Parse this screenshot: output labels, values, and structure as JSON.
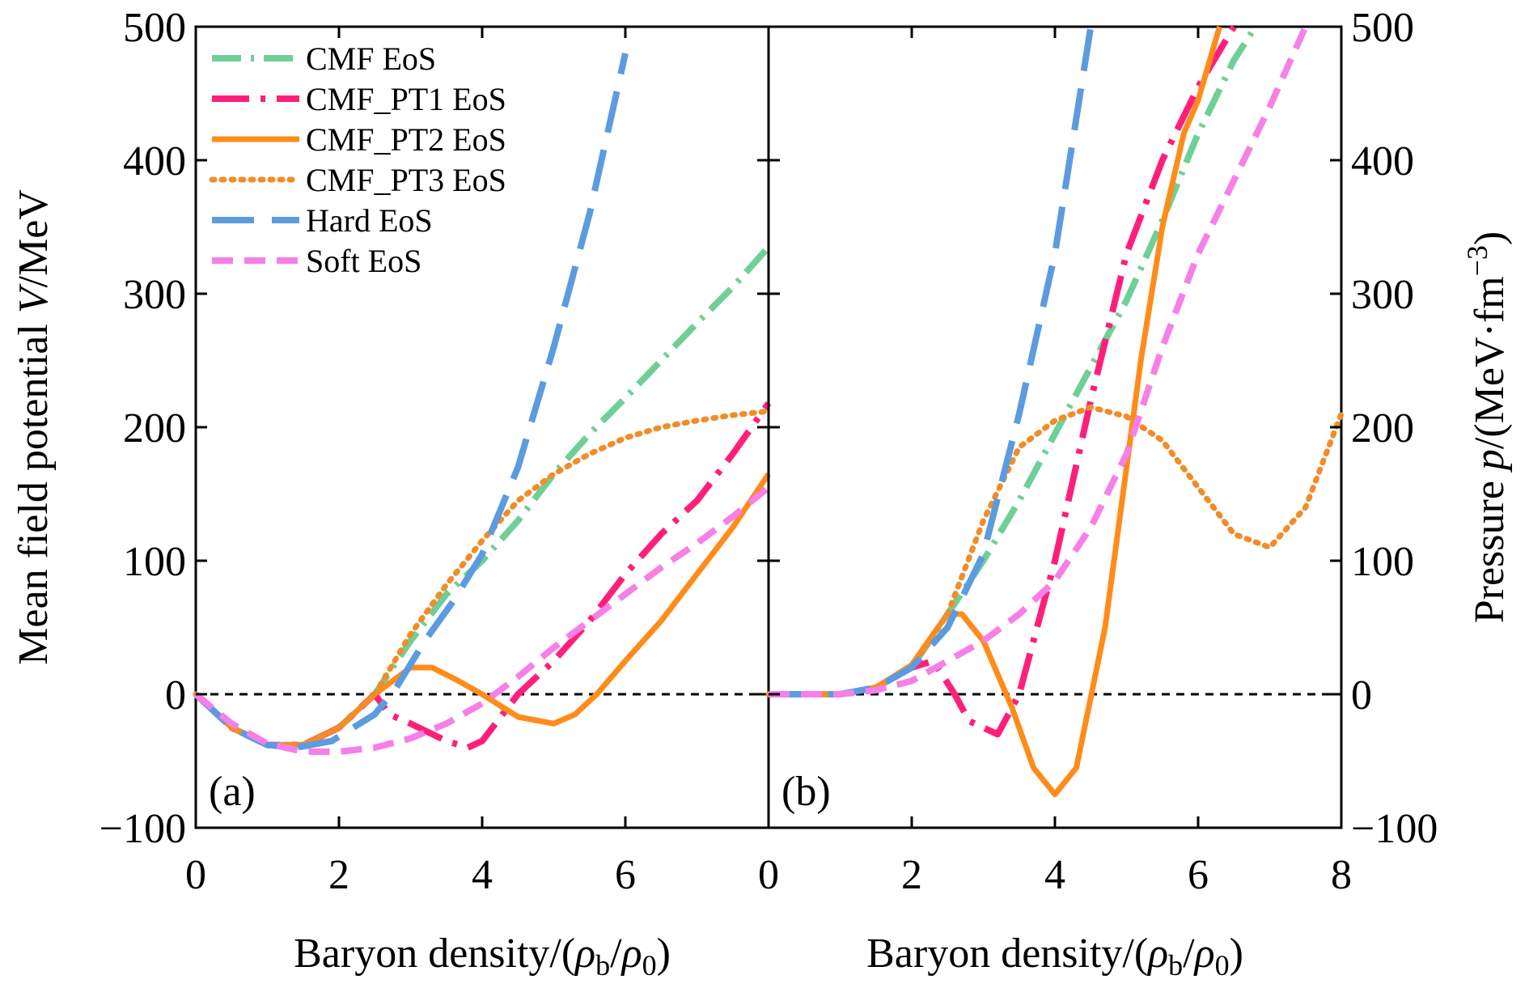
{
  "chart_data": [
    {
      "panel": "(a)",
      "type": "line",
      "xlabel_text": "Baryon density/(",
      "xlabel_rho_b": "ρ",
      "xlabel_sub_b": "b",
      "xlabel_slash": "/",
      "xlabel_rho_0": "ρ",
      "xlabel_sub_0": "0",
      "xlabel_close": ")",
      "ylabel_text": "Mean field potential ",
      "ylabel_italic": "V",
      "ylabel_unit": "/MeV",
      "xlim": [
        0,
        8
      ],
      "ylim": [
        -100,
        500
      ],
      "x_ticks": [
        "0",
        "2",
        "4",
        "6"
      ],
      "y_ticks": [
        "−100",
        "0",
        "100",
        "200",
        "300",
        "400",
        "500"
      ],
      "x_tick_values": [
        0,
        2,
        4,
        6
      ],
      "y_tick_values": [
        -100,
        0,
        100,
        200,
        300,
        400,
        500
      ],
      "series": [
        {
          "name": "CMF EoS",
          "color": "#6fcf97",
          "dash": "dashdot",
          "points": [
            [
              0,
              0
            ],
            [
              0.5,
              -25
            ],
            [
              1,
              -38
            ],
            [
              1.5,
              -38
            ],
            [
              2,
              -25
            ],
            [
              2.5,
              0
            ],
            [
              3,
              40
            ],
            [
              3.5,
              75
            ],
            [
              4,
              100
            ],
            [
              4.5,
              130
            ],
            [
              5,
              165
            ],
            [
              5.5,
              195
            ],
            [
              6,
              222
            ],
            [
              6.5,
              250
            ],
            [
              7,
              278
            ],
            [
              7.5,
              305
            ],
            [
              8,
              335
            ]
          ]
        },
        {
          "name": "CMF_PT1 EoS",
          "color": "#ff1f7a",
          "dash": "longdashdot",
          "points": [
            [
              0,
              0
            ],
            [
              0.5,
              -25
            ],
            [
              1,
              -38
            ],
            [
              1.5,
              -38
            ],
            [
              2,
              -25
            ],
            [
              2.5,
              0
            ],
            [
              2.7,
              -15
            ],
            [
              3,
              -22
            ],
            [
              3.5,
              -35
            ],
            [
              3.8,
              -40
            ],
            [
              4,
              -35
            ],
            [
              4.5,
              0
            ],
            [
              5,
              25
            ],
            [
              5.5,
              55
            ],
            [
              6,
              90
            ],
            [
              6.5,
              120
            ],
            [
              7,
              145
            ],
            [
              7.5,
              180
            ],
            [
              8,
              218
            ]
          ]
        },
        {
          "name": "CMF_PT2 EoS",
          "color": "#ff8c1a",
          "dash": "solid",
          "points": [
            [
              0,
              0
            ],
            [
              0.5,
              -25
            ],
            [
              1,
              -38
            ],
            [
              1.5,
              -38
            ],
            [
              2,
              -25
            ],
            [
              2.5,
              0
            ],
            [
              3,
              20
            ],
            [
              3.3,
              20
            ],
            [
              3.6,
              12
            ],
            [
              4,
              0
            ],
            [
              4.5,
              -17
            ],
            [
              5,
              -22
            ],
            [
              5.3,
              -15
            ],
            [
              5.6,
              0
            ],
            [
              6,
              25
            ],
            [
              6.5,
              55
            ],
            [
              7,
              90
            ],
            [
              7.5,
              125
            ],
            [
              8,
              165
            ]
          ]
        },
        {
          "name": "CMF_PT3 EoS",
          "color": "#f28c28",
          "dash": "dotted",
          "points": [
            [
              0,
              0
            ],
            [
              0.5,
              -25
            ],
            [
              1,
              -38
            ],
            [
              1.5,
              -38
            ],
            [
              2,
              -25
            ],
            [
              2.5,
              0
            ],
            [
              3,
              45
            ],
            [
              3.5,
              82
            ],
            [
              4,
              115
            ],
            [
              4.5,
              145
            ],
            [
              5,
              165
            ],
            [
              5.5,
              180
            ],
            [
              6,
              192
            ],
            [
              6.5,
              200
            ],
            [
              7,
              205
            ],
            [
              7.5,
              209
            ],
            [
              8,
              212
            ]
          ]
        },
        {
          "name": "Hard EoS",
          "color": "#5b9be0",
          "dash": "longdash",
          "points": [
            [
              0,
              0
            ],
            [
              0.5,
              -25
            ],
            [
              1,
              -38
            ],
            [
              1.4,
              -40
            ],
            [
              1.9,
              -35
            ],
            [
              2.5,
              -15
            ],
            [
              2.8,
              5
            ],
            [
              3.2,
              40
            ],
            [
              3.6,
              70
            ],
            [
              4,
              105
            ],
            [
              4.5,
              170
            ],
            [
              5,
              260
            ],
            [
              5.5,
              360
            ],
            [
              6,
              480
            ]
          ]
        },
        {
          "name": "Soft EoS",
          "color": "#f77fe8",
          "dash": "dashed",
          "points": [
            [
              0,
              0
            ],
            [
              0.5,
              -22
            ],
            [
              1,
              -37
            ],
            [
              1.5,
              -43
            ],
            [
              2,
              -43
            ],
            [
              2.5,
              -40
            ],
            [
              3,
              -33
            ],
            [
              3.5,
              -22
            ],
            [
              4,
              -7
            ],
            [
              4.5,
              13
            ],
            [
              5,
              35
            ],
            [
              5.5,
              55
            ],
            [
              6,
              75
            ],
            [
              6.5,
              95
            ],
            [
              7,
              113
            ],
            [
              7.5,
              133
            ],
            [
              8,
              155
            ]
          ]
        }
      ]
    },
    {
      "panel": "(b)",
      "type": "line",
      "xlabel_text": "Baryon density/(",
      "xlabel_rho_b": "ρ",
      "xlabel_sub_b": "b",
      "xlabel_slash": "/",
      "xlabel_rho_0": "ρ",
      "xlabel_sub_0": "0",
      "xlabel_close": ")",
      "ylabel_text": "Pressure ",
      "ylabel_italic": "p",
      "ylabel_unit": "/(MeV·fm",
      "ylabel_sup": "−3",
      "ylabel_close": ")",
      "xlim": [
        0,
        8
      ],
      "ylim": [
        -100,
        500
      ],
      "x_ticks": [
        "0",
        "2",
        "4",
        "6",
        "8"
      ],
      "y_ticks": [
        "−100",
        "0",
        "100",
        "200",
        "300",
        "400",
        "500"
      ],
      "x_tick_values": [
        0,
        2,
        4,
        6,
        8
      ],
      "y_tick_values": [
        -100,
        0,
        100,
        200,
        300,
        400,
        500
      ],
      "series": [
        {
          "name": "CMF EoS",
          "color": "#6fcf97",
          "dash": "dashdot",
          "points": [
            [
              0,
              0
            ],
            [
              1,
              0
            ],
            [
              1.5,
              5
            ],
            [
              2,
              20
            ],
            [
              2.5,
              60
            ],
            [
              3,
              100
            ],
            [
              3.5,
              145
            ],
            [
              4,
              195
            ],
            [
              4.5,
              245
            ],
            [
              5,
              295
            ],
            [
              5.5,
              355
            ],
            [
              6,
              420
            ],
            [
              6.5,
              475
            ],
            [
              6.8,
              500
            ]
          ]
        },
        {
          "name": "CMF_PT1 EoS",
          "color": "#ff1f7a",
          "dash": "longdashdot",
          "points": [
            [
              0,
              0
            ],
            [
              1,
              0
            ],
            [
              1.5,
              5
            ],
            [
              2,
              20
            ],
            [
              2.3,
              25
            ],
            [
              2.6,
              0
            ],
            [
              2.8,
              -20
            ],
            [
              3.2,
              -30
            ],
            [
              3.5,
              0
            ],
            [
              3.8,
              60
            ],
            [
              4,
              100
            ],
            [
              4.5,
              220
            ],
            [
              5,
              330
            ],
            [
              5.5,
              400
            ],
            [
              6,
              455
            ],
            [
              6.5,
              500
            ]
          ]
        },
        {
          "name": "CMF_PT2 EoS",
          "color": "#ff8c1a",
          "dash": "solid",
          "points": [
            [
              0,
              0
            ],
            [
              1,
              0
            ],
            [
              1.5,
              5
            ],
            [
              2,
              22
            ],
            [
              2.3,
              45
            ],
            [
              2.5,
              60
            ],
            [
              2.7,
              60
            ],
            [
              3,
              40
            ],
            [
              3.4,
              -10
            ],
            [
              3.7,
              -55
            ],
            [
              4,
              -75
            ],
            [
              4.3,
              -55
            ],
            [
              4.7,
              50
            ],
            [
              5.2,
              250
            ],
            [
              5.5,
              350
            ],
            [
              5.8,
              420
            ],
            [
              6,
              445
            ],
            [
              6.3,
              500
            ]
          ]
        },
        {
          "name": "CMF_PT3 EoS",
          "color": "#f28c28",
          "dash": "dotted",
          "points": [
            [
              0,
              0
            ],
            [
              1,
              0
            ],
            [
              1.5,
              5
            ],
            [
              2,
              20
            ],
            [
              2.5,
              60
            ],
            [
              3,
              130
            ],
            [
              3.5,
              185
            ],
            [
              4,
              205
            ],
            [
              4.5,
              215
            ],
            [
              5,
              208
            ],
            [
              5.5,
              190
            ],
            [
              6,
              155
            ],
            [
              6.5,
              120
            ],
            [
              7,
              110
            ],
            [
              7.5,
              140
            ],
            [
              8,
              210
            ]
          ]
        },
        {
          "name": "Hard EoS",
          "color": "#5b9be0",
          "dash": "longdash",
          "points": [
            [
              0,
              0
            ],
            [
              1,
              0
            ],
            [
              1.5,
              5
            ],
            [
              2,
              20
            ],
            [
              2.5,
              50
            ],
            [
              3,
              105
            ],
            [
              3.5,
              210
            ],
            [
              4,
              330
            ],
            [
              4.5,
              500
            ]
          ]
        },
        {
          "name": "Soft EoS",
          "color": "#f77fe8",
          "dash": "dashed",
          "points": [
            [
              0,
              0
            ],
            [
              1,
              0
            ],
            [
              1.5,
              3
            ],
            [
              2,
              10
            ],
            [
              2.5,
              25
            ],
            [
              3,
              40
            ],
            [
              3.5,
              60
            ],
            [
              4,
              85
            ],
            [
              4.5,
              125
            ],
            [
              5,
              180
            ],
            [
              5.5,
              260
            ],
            [
              6,
              330
            ],
            [
              6.5,
              385
            ],
            [
              7,
              440
            ],
            [
              7.5,
              500
            ]
          ]
        }
      ]
    }
  ],
  "legend": {
    "items": [
      "CMF EoS",
      "CMF_PT1 EoS",
      "CMF_PT2 EoS",
      "CMF_PT3 EoS",
      "Hard EoS",
      "Soft EoS"
    ]
  }
}
